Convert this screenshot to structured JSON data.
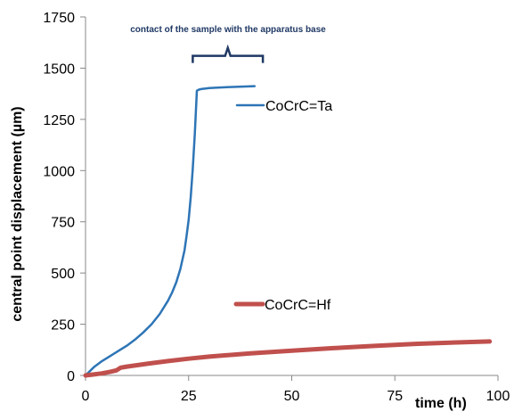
{
  "chart_data": {
    "type": "line",
    "title": "",
    "xlabel": "time (h)",
    "ylabel": "central point displacement (µm)",
    "xlim": [
      0,
      100
    ],
    "ylim": [
      0,
      1750
    ],
    "x_ticks": [
      0,
      25,
      50,
      75,
      100
    ],
    "y_ticks": [
      0,
      250,
      500,
      750,
      1000,
      1250,
      1500,
      1750
    ],
    "grid": false,
    "annotation": {
      "text": "contact of the sample with the apparatus base",
      "x_range": [
        26,
        43
      ],
      "y": 1560
    },
    "series": [
      {
        "name": "CoCrC=Ta",
        "color": "#2E75B6",
        "x": [
          0,
          2,
          4,
          6,
          8,
          10,
          12,
          14,
          16,
          18,
          20,
          21,
          22,
          23,
          24,
          24.5,
          25,
          25.5,
          26,
          26.5,
          27,
          27.5,
          28,
          30,
          32,
          35,
          38,
          41
        ],
        "y": [
          0,
          40,
          70,
          95,
          120,
          145,
          175,
          210,
          250,
          300,
          365,
          405,
          455,
          520,
          610,
          680,
          760,
          870,
          1010,
          1180,
          1390,
          1395,
          1398,
          1403,
          1405,
          1408,
          1410,
          1412
        ]
      },
      {
        "name": "CoCrC=Hf",
        "color": "#C0504D",
        "x": [
          0,
          2,
          4,
          6,
          7.5,
          8.5,
          10,
          15,
          20,
          25,
          30,
          40,
          50,
          60,
          70,
          80,
          90,
          98
        ],
        "y": [
          0,
          5,
          10,
          18,
          25,
          38,
          43,
          57,
          70,
          82,
          92,
          108,
          121,
          133,
          144,
          154,
          161,
          166
        ]
      }
    ]
  }
}
